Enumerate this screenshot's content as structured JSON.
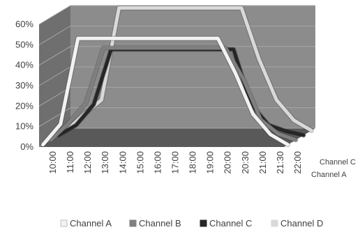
{
  "chart_data": {
    "type": "line",
    "style": "3d-line",
    "categories": [
      "10:00",
      "11:00",
      "12:00",
      "13:00",
      "14:00",
      "15:00",
      "16:00",
      "17:00",
      "18:00",
      "19:00",
      "20:00",
      "20:30",
      "21:00",
      "21:30",
      "22:00"
    ],
    "ylim": [
      0,
      60
    ],
    "y_tick_labels": [
      "0%",
      "10%",
      "20%",
      "30%",
      "40%",
      "50%",
      "60%"
    ],
    "grid": true,
    "legend_position": "bottom",
    "depth_axis_labels": [
      "Channel C",
      "Channel A"
    ],
    "series": [
      {
        "name": "Channel A",
        "color": "#f2f2f2",
        "values": [
          0,
          10,
          52,
          52,
          52,
          52,
          52,
          52,
          52,
          52,
          52,
          35,
          15,
          5,
          0
        ]
      },
      {
        "name": "Channel B",
        "color": "#7f7f7f",
        "values": [
          0,
          8,
          18,
          45,
          45,
          45,
          45,
          45,
          45,
          45,
          45,
          30,
          10,
          3,
          0
        ]
      },
      {
        "name": "Channel C",
        "color": "#262626",
        "values": [
          0,
          5,
          15,
          42,
          42,
          42,
          42,
          42,
          42,
          42,
          42,
          15,
          5,
          2,
          0
        ]
      },
      {
        "name": "Channel D",
        "color": "#d9d9d9",
        "values": [
          0,
          8,
          15,
          60,
          60,
          60,
          60,
          60,
          60,
          60,
          60,
          35,
          15,
          5,
          0
        ]
      }
    ]
  }
}
